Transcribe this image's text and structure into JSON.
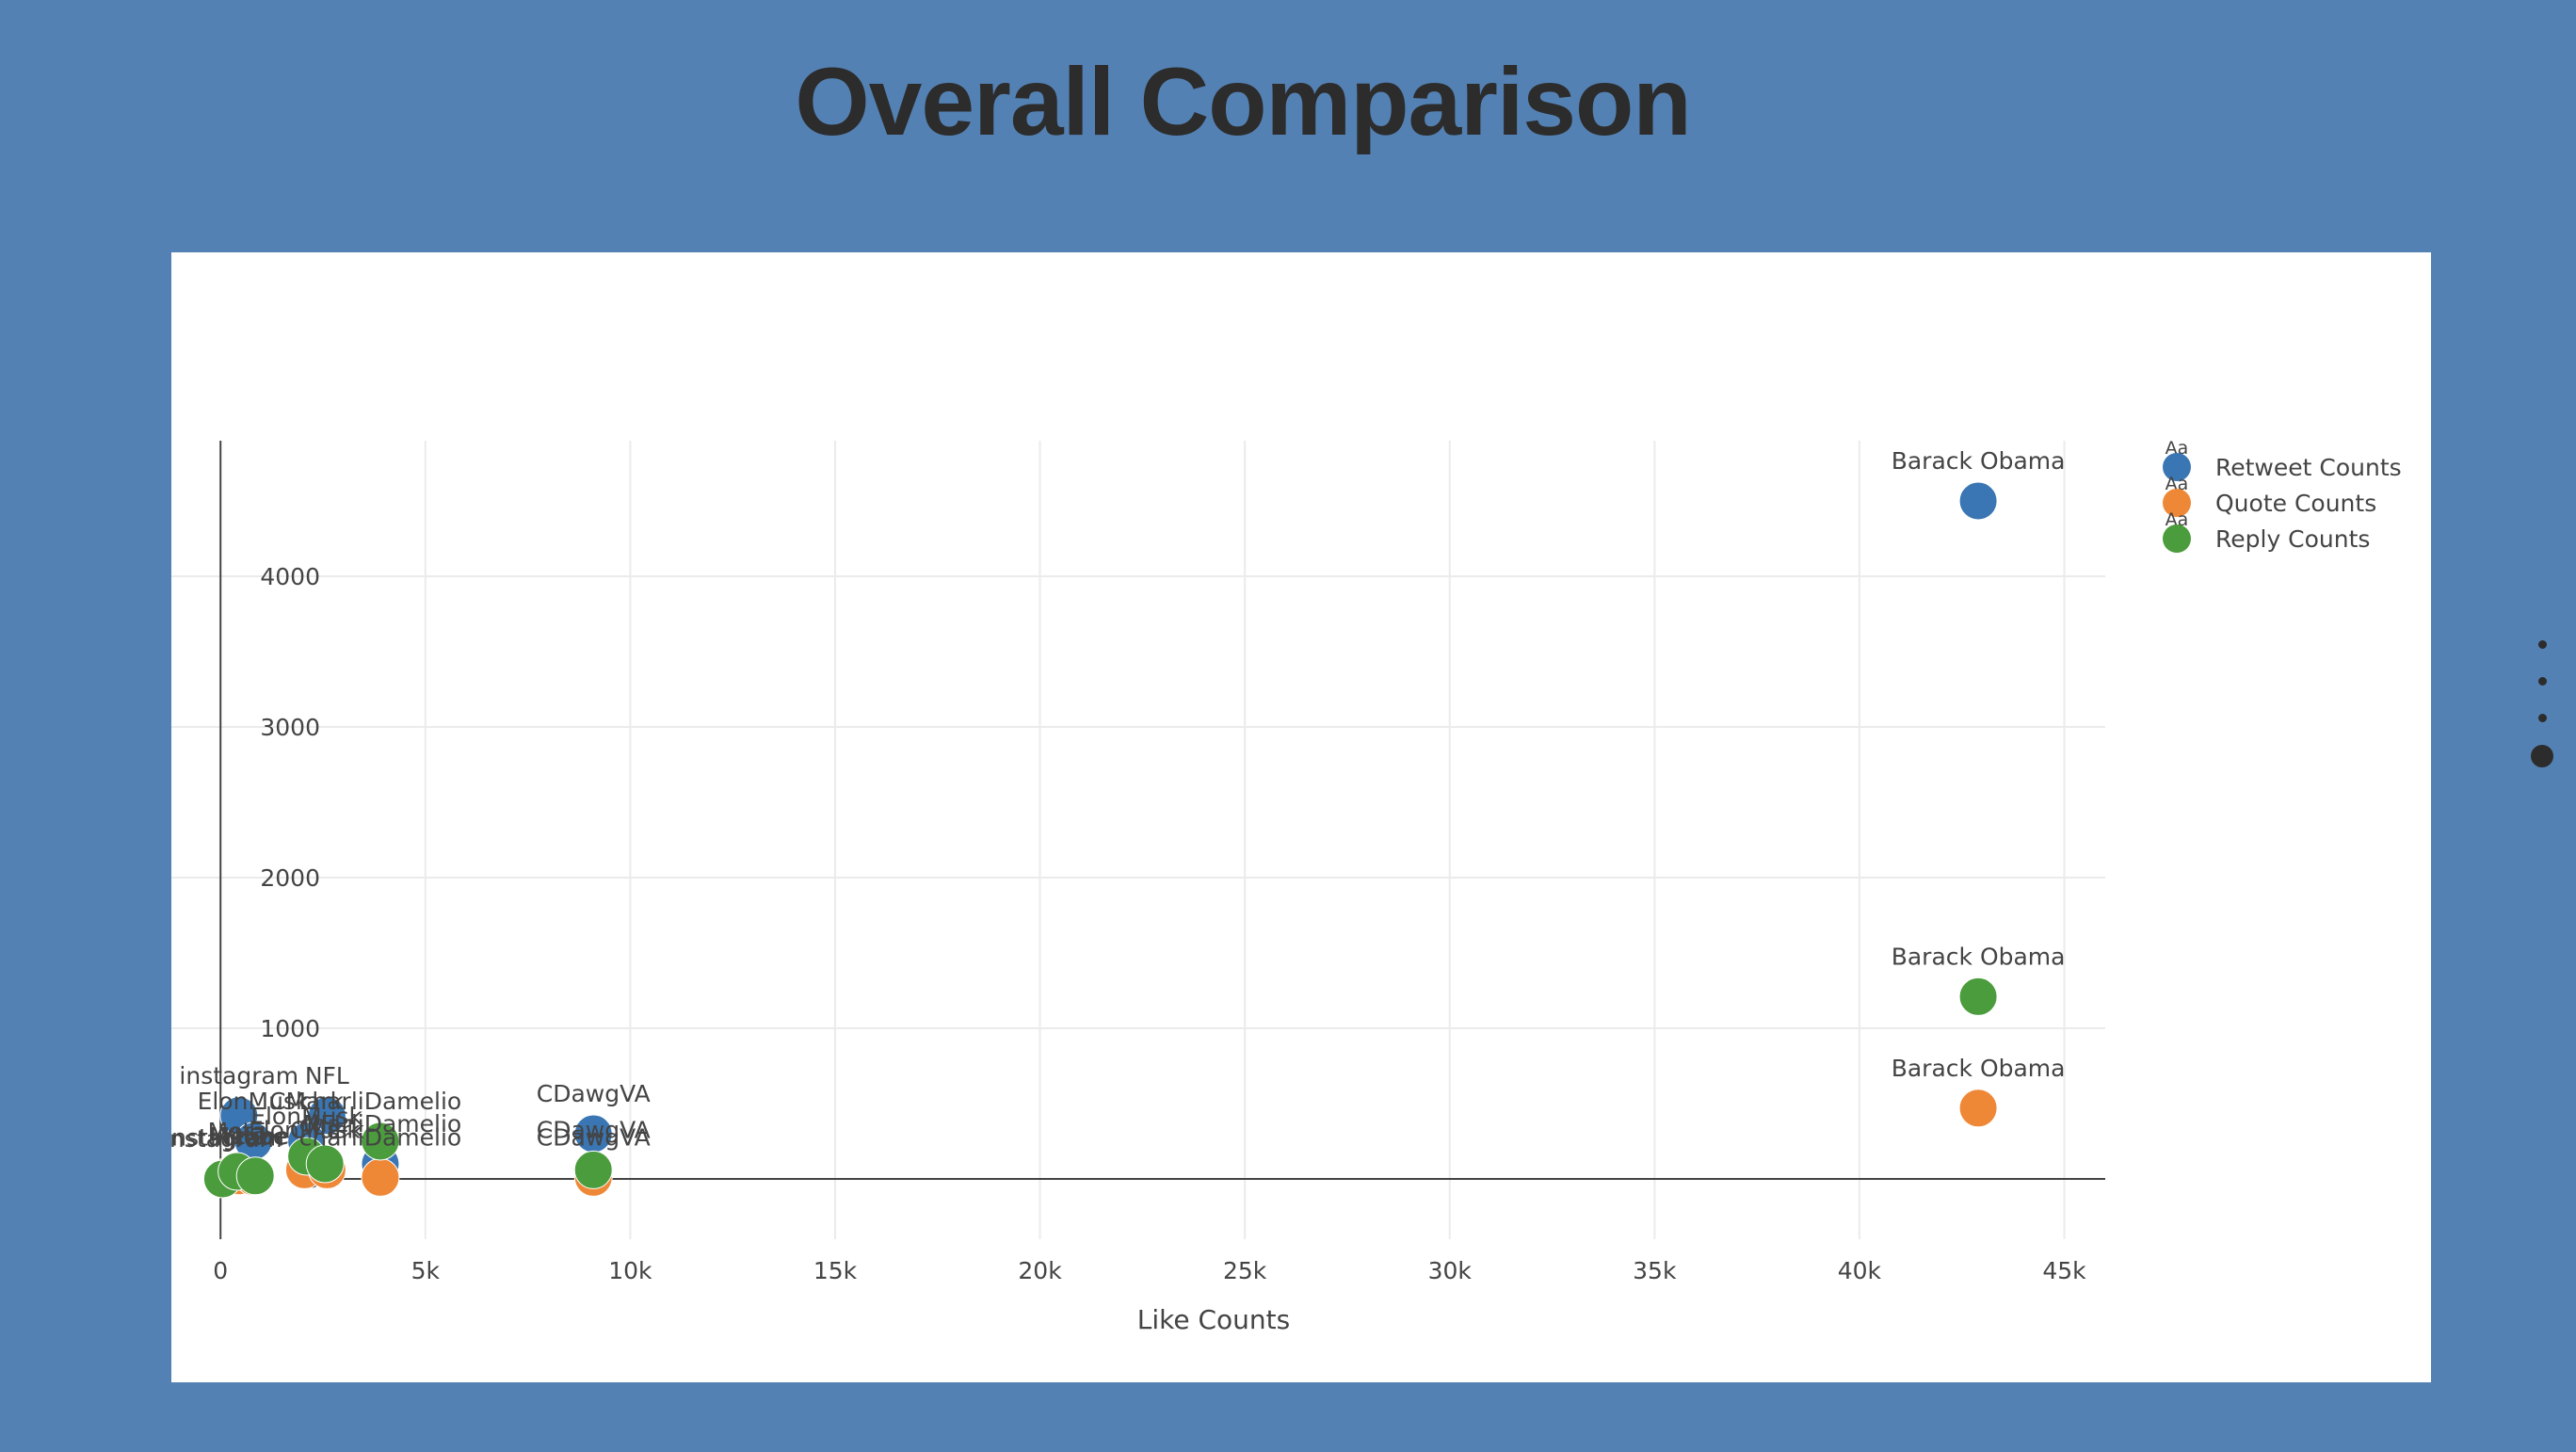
{
  "page": {
    "title": "Overall Comparison",
    "background_color": "#5481b3"
  },
  "chart_data": {
    "type": "scatter",
    "title": "",
    "xlabel": "Like Counts",
    "ylabel": "",
    "xlim": [
      -1200,
      46000
    ],
    "ylim": [
      -400,
      4900
    ],
    "x_ticks": [
      0,
      5000,
      10000,
      15000,
      20000,
      25000,
      30000,
      35000,
      40000,
      45000
    ],
    "x_tick_labels": [
      "0",
      "5k",
      "10k",
      "15k",
      "20k",
      "25k",
      "30k",
      "35k",
      "40k",
      "45k"
    ],
    "y_ticks": [
      0,
      1000,
      2000,
      3000,
      4000
    ],
    "y_tick_labels": [
      "0",
      "1000",
      "2000",
      "3000",
      "4000"
    ],
    "grid": true,
    "legend_position": "top-right",
    "legend_symbol_text": "Aa",
    "series": [
      {
        "name": "Retweet Counts",
        "color": "#3a76b3",
        "points": [
          {
            "x": 450,
            "y": 420,
            "label": "instagram"
          },
          {
            "x": 2600,
            "y": 420,
            "label": "NFL"
          },
          {
            "x": 800,
            "y": 250,
            "label": "ElonMusk"
          },
          {
            "x": 2100,
            "y": 250,
            "label": "CMark"
          },
          {
            "x": 3900,
            "y": 100,
            "label": "charliDamelio"
          },
          {
            "x": 9100,
            "y": 300,
            "label": "CDawgVA"
          },
          {
            "x": 42900,
            "y": 4500,
            "label": "Barack Obama"
          }
        ]
      },
      {
        "name": "Quote Counts",
        "color": "#ef8836",
        "points": [
          {
            "x": 100,
            "y": 10,
            "label": "instagram"
          },
          {
            "x": 450,
            "y": 20,
            "label": "Meta"
          },
          {
            "x": 800,
            "y": 15,
            "label": "Ytube"
          },
          {
            "x": 2050,
            "y": 60,
            "label": "ElonMusk"
          },
          {
            "x": 2600,
            "y": 60,
            "label": "CMark"
          },
          {
            "x": 3900,
            "y": 10,
            "label": "charliDamelio"
          },
          {
            "x": 9100,
            "y": 10,
            "label": "CDawgVA"
          },
          {
            "x": 42900,
            "y": 470,
            "label": "Barack Obama"
          }
        ]
      },
      {
        "name": "Reply Counts",
        "color": "#4b9c3c",
        "points": [
          {
            "x": 50,
            "y": 0,
            "label": "instagram"
          },
          {
            "x": 400,
            "y": 50,
            "label": "Meta"
          },
          {
            "x": 850,
            "y": 20,
            "label": "Ytube"
          },
          {
            "x": 2100,
            "y": 150,
            "label": "ElonMusk"
          },
          {
            "x": 2550,
            "y": 100,
            "label": "NFL"
          },
          {
            "x": 3900,
            "y": 250,
            "label": "charliDamelio"
          },
          {
            "x": 9100,
            "y": 60,
            "label": "CDawgVA"
          },
          {
            "x": 42900,
            "y": 1210,
            "label": "Barack Obama"
          }
        ]
      }
    ]
  },
  "slide_nav": {
    "dot_count": 4,
    "active_index": 3
  }
}
